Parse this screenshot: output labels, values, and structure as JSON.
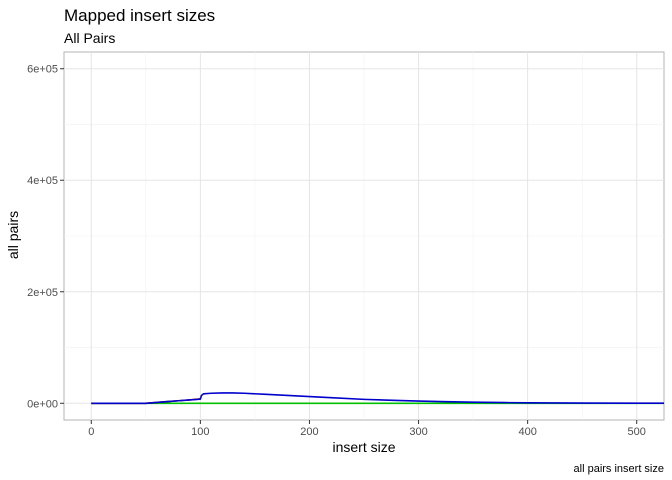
{
  "chart_data": {
    "type": "line",
    "title": "Mapped insert sizes",
    "subtitle": "All Pairs",
    "xlabel": "insert size",
    "ylabel": "all pairs",
    "caption": "all pairs insert size",
    "xlim": [
      -25,
      525
    ],
    "ylim": [
      -30000,
      630000
    ],
    "x_ticks": [
      0,
      100,
      200,
      300,
      400,
      500
    ],
    "x_tick_labels": [
      "0",
      "100",
      "200",
      "300",
      "400",
      "500"
    ],
    "y_ticks": [
      0,
      200000,
      400000,
      600000
    ],
    "y_tick_labels": [
      "0e+00",
      "2e+05",
      "4e+05",
      "6e+05"
    ],
    "grid": true,
    "legend": "none",
    "series": [
      {
        "color": "#00c000",
        "x": [
          0,
          100,
          200,
          300,
          400,
          525
        ],
        "y": [
          0,
          0,
          0,
          0,
          0,
          0
        ]
      },
      {
        "color": "#8b0000",
        "x": [
          0,
          50,
          60,
          70,
          80,
          90,
          98,
          100
        ],
        "y": [
          0,
          0,
          1500,
          3000,
          4500,
          6000,
          7500,
          8000
        ]
      },
      {
        "color": "#0000cc",
        "x": [
          0,
          50,
          60,
          70,
          80,
          90,
          98,
          100,
          101,
          103,
          110,
          120,
          130,
          140,
          160,
          180,
          200,
          220,
          250,
          280,
          300,
          320,
          350,
          380,
          400,
          450,
          500,
          525
        ],
        "y": [
          0,
          0,
          1500,
          3000,
          4500,
          6000,
          7000,
          7500,
          14000,
          17000,
          18000,
          18500,
          18500,
          18000,
          16000,
          14000,
          12000,
          10000,
          7000,
          5000,
          4000,
          3000,
          2000,
          1200,
          800,
          400,
          200,
          100
        ]
      }
    ]
  }
}
